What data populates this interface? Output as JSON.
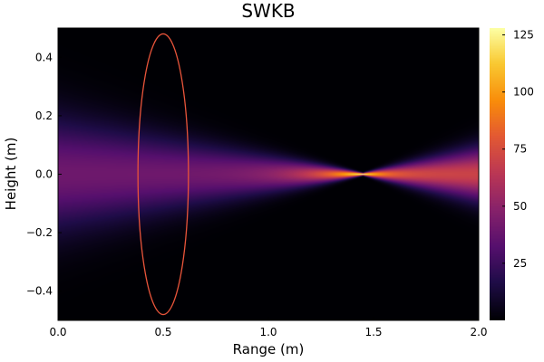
{
  "chart_data": {
    "type": "heatmap",
    "title": "SWKB",
    "xlabel": "Range (m)",
    "ylabel": "Height (m)",
    "xlim": [
      0.0,
      2.0
    ],
    "ylim": [
      -0.5,
      0.5
    ],
    "x_ticks": [
      {
        "value": 0.0,
        "label": "0.0"
      },
      {
        "value": 0.5,
        "label": "0.5"
      },
      {
        "value": 1.0,
        "label": "1.0"
      },
      {
        "value": 1.5,
        "label": "1.5"
      },
      {
        "value": 2.0,
        "label": "2.0"
      }
    ],
    "y_ticks": [
      {
        "value": 0.4,
        "label": "0.4"
      },
      {
        "value": 0.2,
        "label": "0.2"
      },
      {
        "value": 0.0,
        "label": "0.0"
      },
      {
        "value": -0.2,
        "label": "−0.2"
      },
      {
        "value": -0.4,
        "label": "−0.4"
      }
    ],
    "colorbar": {
      "colormap": "inferno",
      "range": [
        0,
        128
      ],
      "ticks": [
        {
          "value": 25,
          "label": "25"
        },
        {
          "value": 50,
          "label": "50"
        },
        {
          "value": 75,
          "label": "75"
        },
        {
          "value": 100,
          "label": "100"
        },
        {
          "value": 125,
          "label": "125"
        }
      ]
    },
    "beam": {
      "initial_height_extent": 0.2,
      "focus_range": 1.45,
      "peak_intensity": 128,
      "initial_intensity": 40,
      "far_intensity": 70
    },
    "ellipse": {
      "center_x": 0.5,
      "center_y": 0.0,
      "semi_axis_x": 0.12,
      "semi_axis_y": 0.48,
      "color": "#e8543a"
    },
    "grid": false
  }
}
